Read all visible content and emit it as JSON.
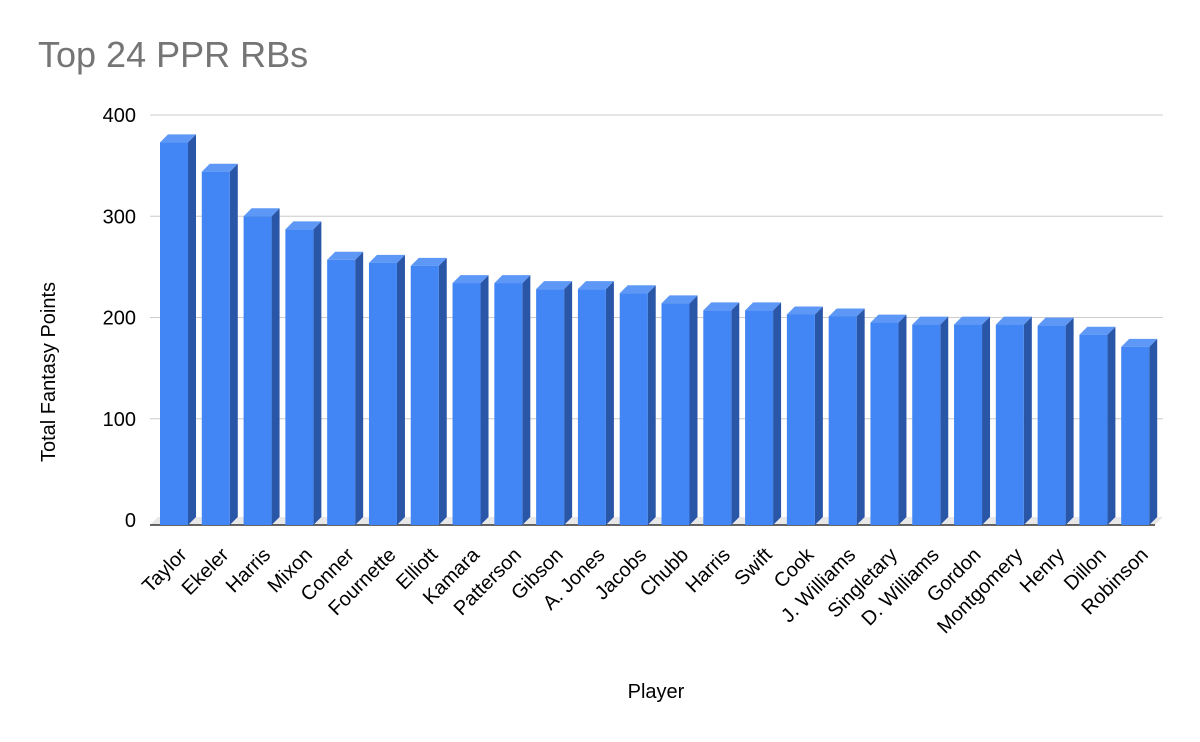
{
  "chart_data": {
    "type": "bar",
    "title": "Top 24 PPR RBs",
    "xlabel": "Player",
    "ylabel": "Total Fantasy Points",
    "ylim": [
      0,
      400
    ],
    "yticks": [
      0,
      100,
      200,
      300,
      400
    ],
    "grid": true,
    "style": "3d",
    "categories": [
      "Taylor",
      "Ekeler",
      "Harris",
      "Mixon",
      "Conner",
      "Fournette",
      "Elliott",
      "Kamara",
      "Patterson",
      "Gibson",
      "A. Jones",
      "Jacobs",
      "Chubb",
      "Harris",
      "Swift",
      "Cook",
      "J. Williams",
      "Singletary",
      "D. Williams",
      "Gordon",
      "Montgomery",
      "Henry",
      "Dillon",
      "Robinson"
    ],
    "values": [
      373,
      344,
      300,
      287,
      257,
      254,
      251,
      234,
      234,
      228,
      228,
      224,
      214,
      207,
      207,
      203,
      201,
      195,
      193,
      193,
      193,
      192,
      183,
      171
    ]
  },
  "colors": {
    "bar_front": "#4285f4",
    "bar_top": "#5e98f6",
    "bar_side": "#2a56a8",
    "gridline": "#cccccc",
    "axis": "#333333",
    "title": "#757575"
  }
}
